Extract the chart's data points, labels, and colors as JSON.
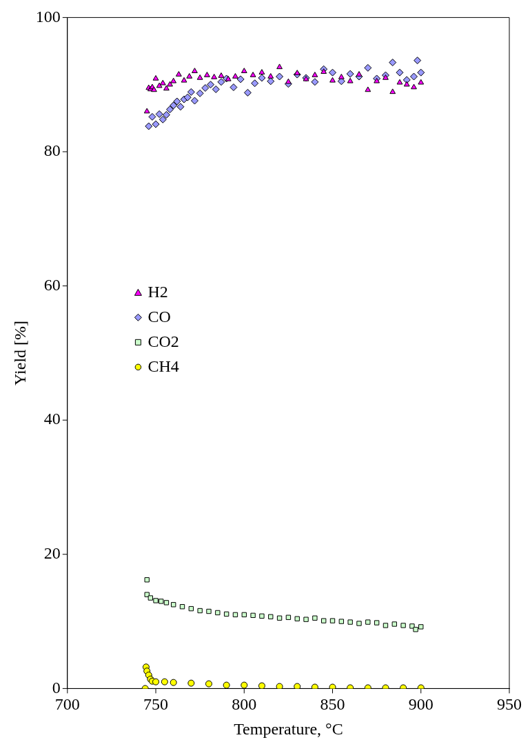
{
  "chart_data": {
    "type": "scatter",
    "xlabel": "Temperature, °C",
    "ylabel": "Yield [%]",
    "xlim": [
      700,
      950
    ],
    "xticks": [
      700,
      750,
      800,
      850,
      900,
      950
    ],
    "ylim": [
      0,
      100
    ],
    "yticks": [
      0,
      20,
      40,
      60,
      80,
      100
    ],
    "grid": false,
    "legend": "left",
    "series": [
      {
        "name": "H2",
        "color": "#ff00ff",
        "marker": "triangle",
        "x": [
          745,
          746,
          747,
          748,
          749,
          750,
          752,
          754,
          756,
          758,
          760,
          763,
          766,
          769,
          772,
          775,
          779,
          783,
          787,
          791,
          795,
          800,
          805,
          810,
          815,
          820,
          825,
          830,
          835,
          840,
          845,
          850,
          855,
          860,
          865,
          870,
          875,
          880,
          884,
          888,
          892,
          896,
          900
        ],
        "values": [
          86,
          89.5,
          89.3,
          89.6,
          89.2,
          90.9,
          89.8,
          90.2,
          89.4,
          90.0,
          90.5,
          91.5,
          90.6,
          91.2,
          92.0,
          91.0,
          91.4,
          91.1,
          91.3,
          90.8,
          91.2,
          92.0,
          91.4,
          91.8,
          91.2,
          92.6,
          90.4,
          91.7,
          90.8,
          91.4,
          91.9,
          90.6,
          91.1,
          90.5,
          91.5,
          89.2,
          90.5,
          91.0,
          88.9,
          90.3,
          90.0,
          89.6,
          90.3
        ]
      },
      {
        "name": "CO",
        "color": "#9999ff",
        "marker": "diamond",
        "x": [
          746,
          748,
          750,
          752,
          754,
          756,
          758,
          760,
          762,
          764,
          766,
          768,
          770,
          772,
          775,
          778,
          781,
          784,
          787,
          790,
          794,
          798,
          802,
          806,
          810,
          815,
          820,
          825,
          830,
          835,
          840,
          845,
          850,
          855,
          860,
          865,
          870,
          875,
          880,
          884,
          888,
          892,
          896,
          898,
          900
        ],
        "values": [
          83.8,
          85.2,
          84.1,
          85.6,
          84.8,
          85.5,
          86.3,
          86.9,
          87.5,
          86.7,
          87.8,
          88.1,
          88.9,
          87.6,
          88.7,
          89.5,
          90.0,
          89.3,
          90.4,
          90.9,
          89.6,
          90.8,
          88.8,
          90.2,
          91.0,
          90.5,
          91.2,
          90.1,
          91.5,
          91.0,
          90.4,
          92.3,
          91.8,
          90.5,
          91.6,
          91.2,
          92.5,
          90.9,
          91.4,
          93.3,
          91.8,
          90.7,
          91.2,
          93.6,
          91.8
        ]
      },
      {
        "name": "CO2",
        "color": "#ccffcc",
        "marker": "square",
        "x": [
          745,
          745,
          747,
          750,
          753,
          756,
          760,
          765,
          770,
          775,
          780,
          785,
          790,
          795,
          800,
          805,
          810,
          815,
          820,
          825,
          830,
          835,
          840,
          845,
          850,
          855,
          860,
          865,
          870,
          875,
          880,
          885,
          890,
          895,
          897,
          900
        ],
        "values": [
          16.2,
          14.0,
          13.5,
          13.1,
          13.0,
          12.8,
          12.5,
          12.2,
          11.9,
          11.6,
          11.5,
          11.3,
          11.1,
          11.0,
          11.0,
          10.9,
          10.8,
          10.7,
          10.5,
          10.6,
          10.4,
          10.3,
          10.5,
          10.1,
          10.1,
          10.0,
          9.9,
          9.7,
          9.9,
          9.8,
          9.4,
          9.6,
          9.4,
          9.3,
          8.8,
          9.2
        ]
      },
      {
        "name": "CH4",
        "color": "#ffff00",
        "marker": "circle",
        "x": [
          744,
          744.5,
          745,
          746,
          747,
          748,
          750,
          755,
          760,
          770,
          780,
          790,
          800,
          810,
          820,
          830,
          840,
          850,
          860,
          870,
          880,
          890,
          900
        ],
        "values": [
          0,
          3.2,
          2.6,
          2.0,
          1.4,
          1.1,
          1.0,
          1.0,
          0.9,
          0.8,
          0.7,
          0.5,
          0.5,
          0.4,
          0.3,
          0.3,
          0.2,
          0.2,
          0.1,
          0.1,
          0.1,
          0.1,
          0.1
        ]
      }
    ]
  }
}
